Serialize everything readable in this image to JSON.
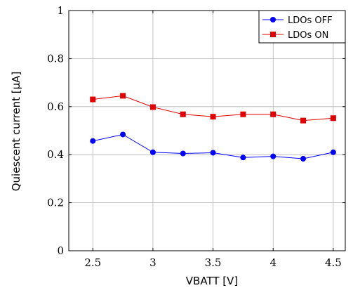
{
  "chart_data": {
    "type": "line",
    "title": "",
    "xlabel": "VBATT [V]",
    "ylabel": "Quiescent current [μA]",
    "xlim": [
      2.3,
      4.6
    ],
    "ylim": [
      0,
      1
    ],
    "xticks": [
      2.5,
      3,
      3.5,
      4,
      4.5
    ],
    "xtick_labels": [
      "2.5",
      "3",
      "3.5",
      "4",
      "4.5"
    ],
    "yticks": [
      0,
      0.2,
      0.4,
      0.6,
      0.8,
      1
    ],
    "ytick_labels": [
      "0",
      "0.2",
      "0.4",
      "0.6",
      "0.8",
      "1"
    ],
    "grid": true,
    "legend_position": "top-right",
    "x": [
      2.5,
      2.75,
      3,
      3.25,
      3.5,
      3.75,
      4,
      4.25,
      4.5
    ],
    "series": [
      {
        "name": "LDOs OFF",
        "color": "#0000ff",
        "marker": "circle",
        "values": [
          0.457,
          0.484,
          0.41,
          0.405,
          0.408,
          0.388,
          0.393,
          0.383,
          0.41
        ]
      },
      {
        "name": "LDOs ON",
        "color": "#e00000",
        "marker": "square",
        "values": [
          0.63,
          0.645,
          0.598,
          0.568,
          0.558,
          0.568,
          0.568,
          0.542,
          0.552
        ]
      }
    ]
  }
}
